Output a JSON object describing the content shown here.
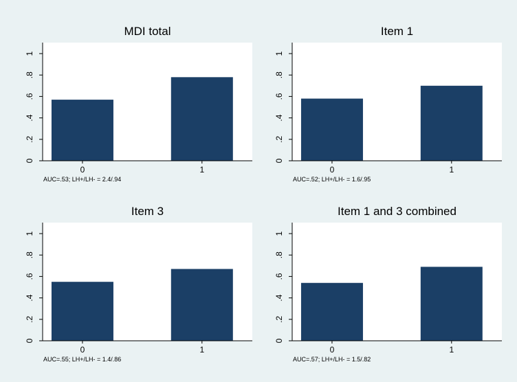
{
  "chart_data": [
    {
      "type": "bar",
      "title": "MDI total",
      "categories": [
        "0",
        "1"
      ],
      "values": [
        0.57,
        0.78
      ],
      "ylim": [
        0,
        1
      ],
      "yticks": [
        "0",
        ".2",
        ".4",
        ".6",
        ".8",
        "1"
      ],
      "note": "AUC=.53; LH+/LH- = 2.4/.94",
      "grid": false,
      "bar_color": "#1b3f66"
    },
    {
      "type": "bar",
      "title": "Item 1",
      "categories": [
        "0",
        "1"
      ],
      "values": [
        0.58,
        0.7
      ],
      "ylim": [
        0,
        1
      ],
      "yticks": [
        "0",
        ".2",
        ".4",
        ".6",
        ".8",
        "1"
      ],
      "note": "AUC=.52; LH+/LH- = 1.6/.95",
      "grid": false,
      "bar_color": "#1b3f66"
    },
    {
      "type": "bar",
      "title": "Item 3",
      "categories": [
        "0",
        "1"
      ],
      "values": [
        0.55,
        0.67
      ],
      "ylim": [
        0,
        1
      ],
      "yticks": [
        "0",
        ".2",
        ".4",
        ".6",
        ".8",
        "1"
      ],
      "note": "AUC=.55; LH+/LH- = 1.4/.86",
      "grid": false,
      "bar_color": "#1b3f66"
    },
    {
      "type": "bar",
      "title": "Item 1 and 3 combined",
      "categories": [
        "0",
        "1"
      ],
      "values": [
        0.54,
        0.69
      ],
      "ylim": [
        0,
        1
      ],
      "yticks": [
        "0",
        ".2",
        ".4",
        ".6",
        ".8",
        "1"
      ],
      "note": "AUC=.57; LH+/LH- = 1.5/.82",
      "grid": false,
      "bar_color": "#1b3f66"
    }
  ],
  "colors": {
    "background": "#eaf2f3",
    "plot_background": "#ffffff",
    "bar": "#1b3f66"
  }
}
